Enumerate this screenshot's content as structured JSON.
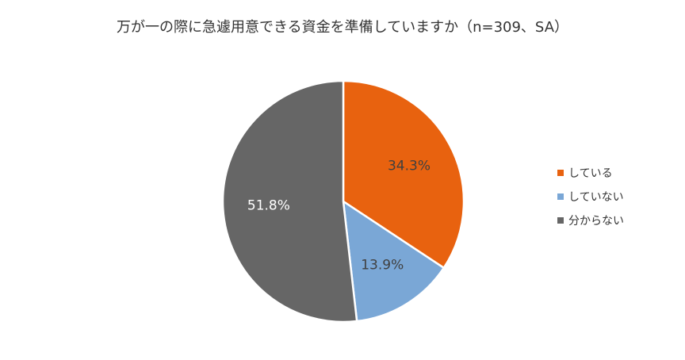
{
  "chart_data": {
    "type": "pie",
    "title": "万が一の際に急遽用意できる資金を準備していますか（n=309、SA）",
    "categories": [
      "している",
      "していない",
      "分からない"
    ],
    "values": [
      34.3,
      13.9,
      51.8
    ],
    "labels": [
      "34.3%",
      "13.9%",
      "51.8%"
    ],
    "colors": [
      "#E8620F",
      "#7AA7D6",
      "#666666"
    ],
    "label_colors": [
      "#404040",
      "#404040",
      "#ffffff"
    ],
    "legend_position": "right",
    "start_angle": "top, clockwise"
  }
}
